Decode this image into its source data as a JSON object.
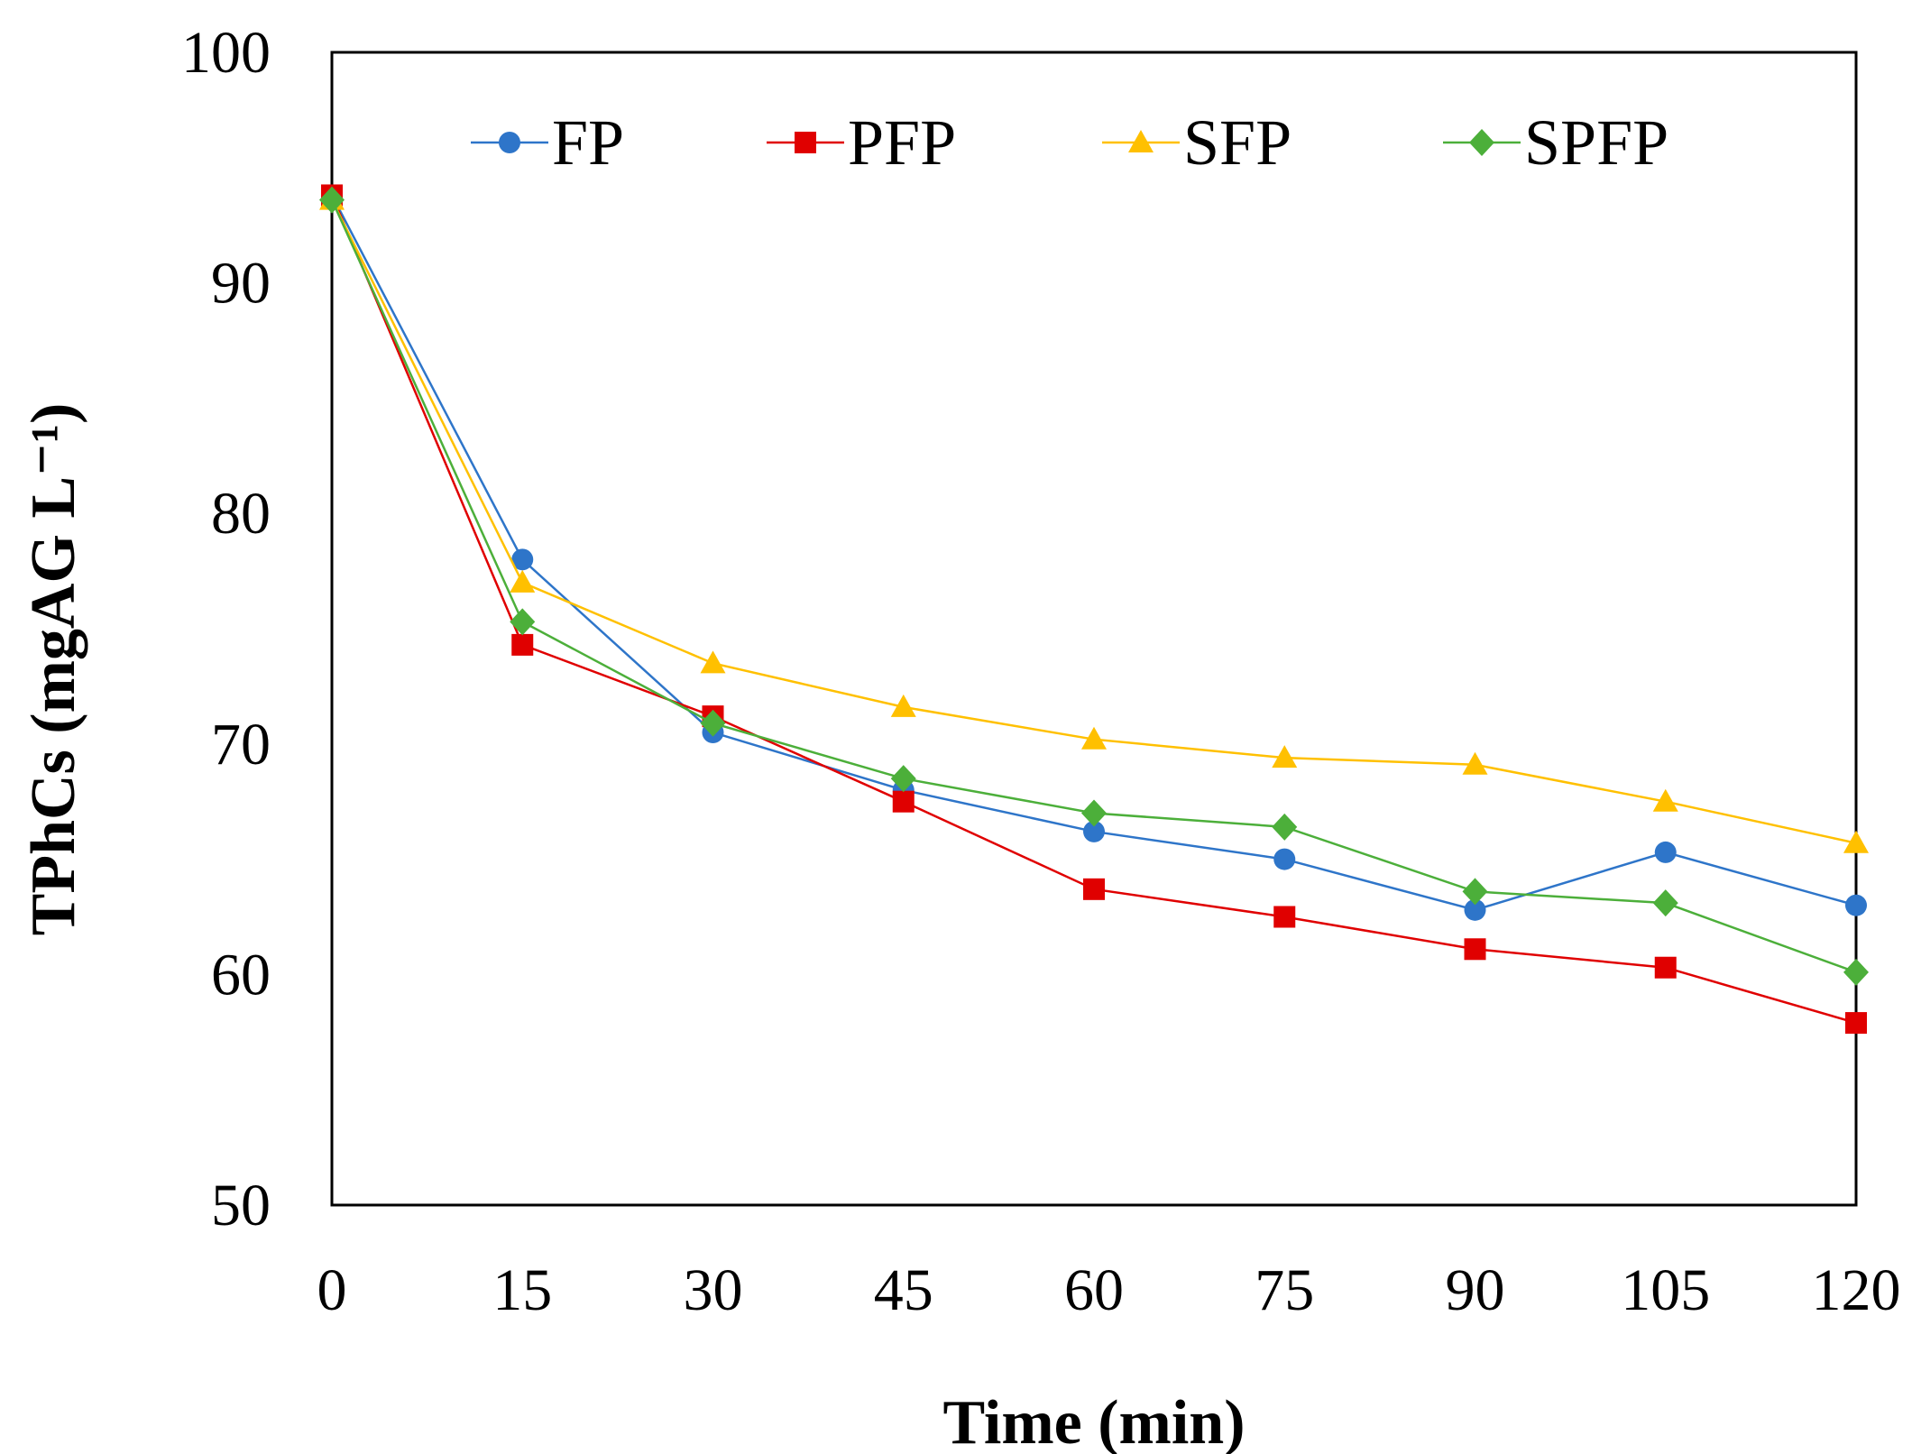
{
  "chart_data": {
    "type": "line",
    "title": "",
    "xlabel": "Time (min)",
    "ylabel": "TPhCs (mgAG L⁻¹)",
    "x": [
      0,
      15,
      30,
      45,
      60,
      75,
      90,
      105,
      120
    ],
    "xlim": [
      0,
      120
    ],
    "ylim": [
      50,
      100
    ],
    "xticks": [
      "0",
      "15",
      "30",
      "45",
      "60",
      "75",
      "90",
      "105",
      "120"
    ],
    "yticks": [
      "50",
      "60",
      "70",
      "80",
      "90",
      "100"
    ],
    "grid": false,
    "legend_position": "top",
    "series": [
      {
        "name": "FP",
        "color": "#2E75C9",
        "marker": "circle",
        "values": [
          93.8,
          78.0,
          70.5,
          68.0,
          66.2,
          65.0,
          62.8,
          65.3,
          63.0
        ]
      },
      {
        "name": "PFP",
        "color": "#E00000",
        "marker": "square",
        "values": [
          93.8,
          74.3,
          71.2,
          67.5,
          63.7,
          62.5,
          61.1,
          60.3,
          57.9
        ]
      },
      {
        "name": "SFP",
        "color": "#FFC000",
        "marker": "triangle",
        "values": [
          93.6,
          77.0,
          73.5,
          71.6,
          70.2,
          69.4,
          69.1,
          67.5,
          65.7
        ]
      },
      {
        "name": "SPFP",
        "color": "#4CAF3A",
        "marker": "diamond",
        "values": [
          93.6,
          75.3,
          70.9,
          68.5,
          67.0,
          66.4,
          63.6,
          63.1,
          60.1
        ]
      }
    ]
  }
}
